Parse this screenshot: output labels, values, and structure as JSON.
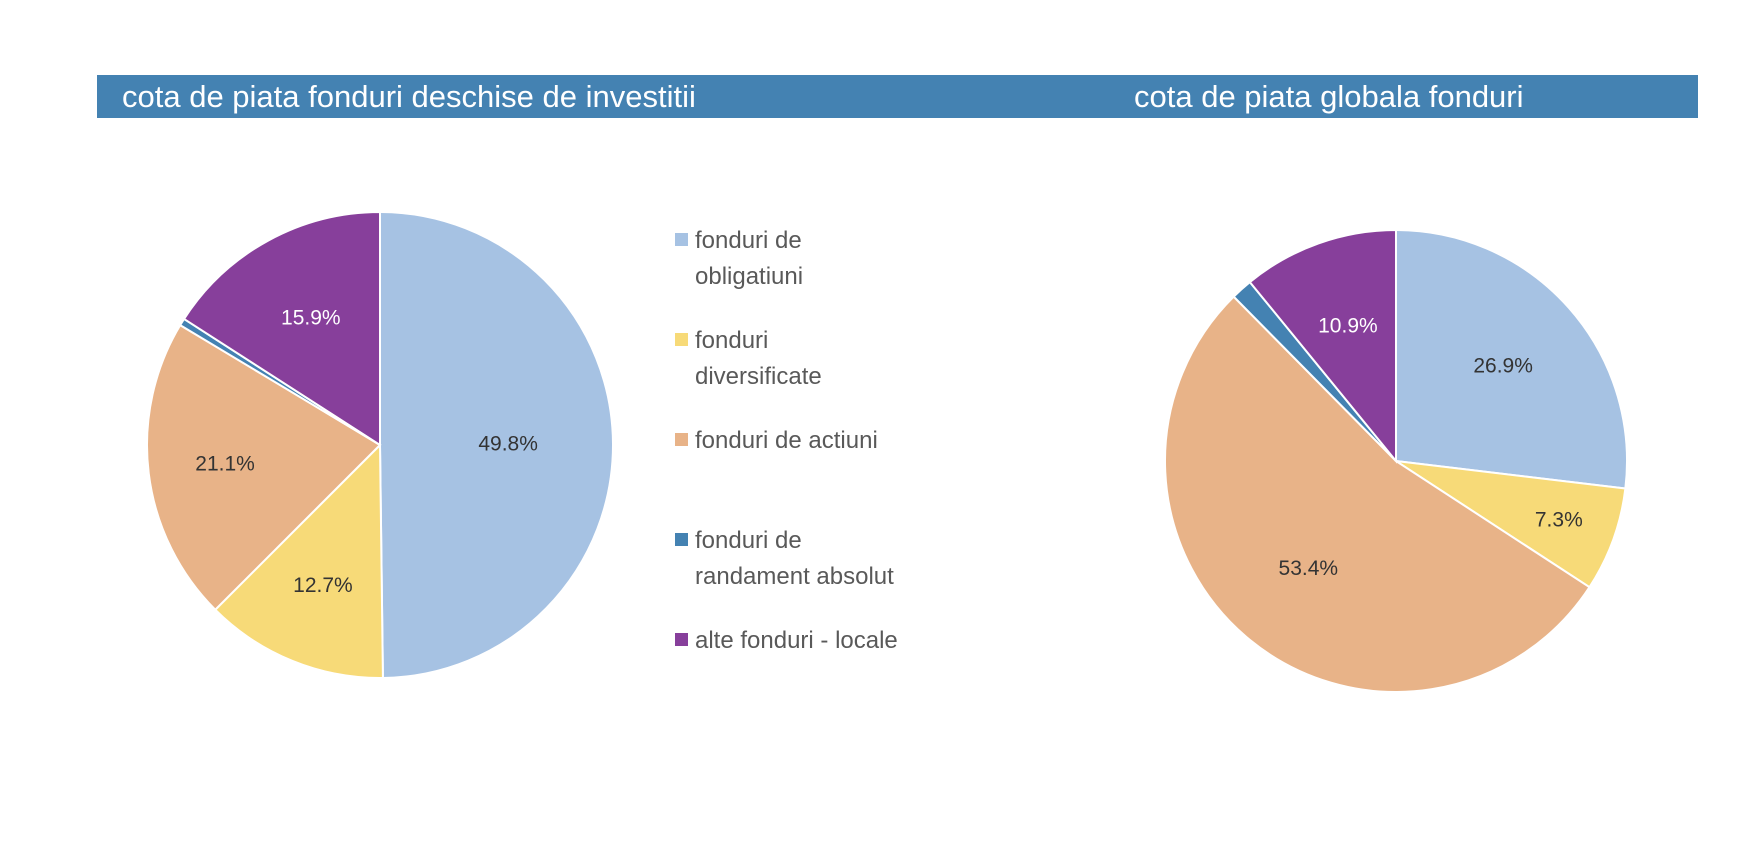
{
  "titles": {
    "left": "cota de piata fonduri deschise de investitii",
    "right": "cota de piata globala fonduri"
  },
  "colors": {
    "title_bar": "#4482B2",
    "label_dark": "#333333",
    "label_light": "#ffffff"
  },
  "legend": [
    {
      "label": "fonduri de\nobligatiuni",
      "color": "#A6C2E3"
    },
    {
      "label": "fonduri\ndiversificate",
      "color": "#F7DA78"
    },
    {
      "label": "fonduri de actiuni",
      "color": "#E8B388"
    },
    {
      "label": "fonduri de\nrandament absolut",
      "color": "#4482B2"
    },
    {
      "label": "alte fonduri - locale",
      "color": "#873F9B"
    }
  ],
  "chart_data": [
    {
      "type": "pie",
      "title": "cota de piata fonduri deschise de investitii",
      "categories": [
        "fonduri de obligatiuni",
        "fonduri diversificate",
        "fonduri de actiuni",
        "fonduri de randament absolut",
        "alte fonduri - locale"
      ],
      "values": [
        49.8,
        12.7,
        21.1,
        0.5,
        15.9
      ],
      "data_labels": [
        "49.8%",
        "12.7%",
        "21.1%",
        "",
        "15.9%"
      ],
      "colors": [
        "#A6C2E3",
        "#F7DA78",
        "#E8B388",
        "#4482B2",
        "#873F9B"
      ],
      "legend_position": "right"
    },
    {
      "type": "pie",
      "title": "cota de piata globala fonduri",
      "categories": [
        "fonduri de obligatiuni",
        "fonduri diversificate",
        "fonduri de actiuni",
        "fonduri de randament absolut",
        "alte fonduri - locale"
      ],
      "values": [
        26.9,
        7.3,
        53.4,
        1.5,
        10.9
      ],
      "data_labels": [
        "26.9%",
        "7.3%",
        "53.4%",
        "",
        "10.9%"
      ],
      "colors": [
        "#A6C2E3",
        "#F7DA78",
        "#E8B388",
        "#4482B2",
        "#873F9B"
      ]
    }
  ]
}
